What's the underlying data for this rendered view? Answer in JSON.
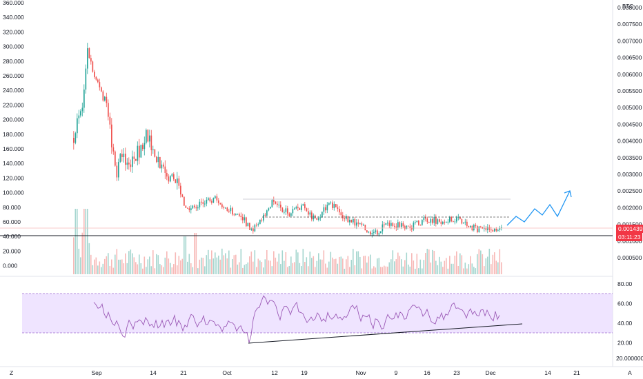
{
  "chart_data": {
    "type": "candlestick",
    "symbol_badge": "BTC",
    "price_axis_right": {
      "ticks": [
        "0.008000",
        "0.007500",
        "0.007000",
        "0.006500",
        "0.006000",
        "0.005500",
        "0.005000",
        "0.004500",
        "0.004000",
        "0.003500",
        "0.003000",
        "0.002500",
        "0.002000",
        "0.001500",
        "0.001000",
        "0.000500"
      ],
      "last_price_label": "0.001439",
      "countdown_label": "03:11:23",
      "label_color": "#f23645"
    },
    "volume_axis_left": {
      "ticks": [
        "360.000",
        "340.000",
        "320.000",
        "300.000",
        "280.000",
        "260.000",
        "240.000",
        "220.000",
        "200.000",
        "180.000",
        "160.000",
        "140.000",
        "120.000",
        "100.000",
        "80.000",
        "60.000",
        "40.000",
        "20.000",
        "0.000"
      ]
    },
    "time_axis": {
      "labels": [
        "Sep",
        "14",
        "21",
        "Oct",
        "12",
        "19",
        "Nov",
        "9",
        "16",
        "23",
        "Dec",
        "14",
        "21"
      ],
      "corner_left": "Z",
      "corner_right": "A"
    },
    "rsi": {
      "ticks": [
        "80.00",
        "60.00",
        "40.00",
        "20.00"
      ],
      "bottom_label": "20.000000",
      "band_upper": 70,
      "band_lower": 30,
      "band_color": "#e8d9ff",
      "line_color": "#9b59b6"
    },
    "series_colors": {
      "up": "#26a69a",
      "down": "#ef5350",
      "projection": "#2196f3"
    },
    "annotations": [
      "solid horizontal support line at ~0.001000",
      "dashed resistance line at ~0.001900",
      "thin grey line at ~0.002250",
      "rsi rising trendline (bullish divergence)",
      "blue zig-zag projection upward to ~0.002500"
    ]
  }
}
